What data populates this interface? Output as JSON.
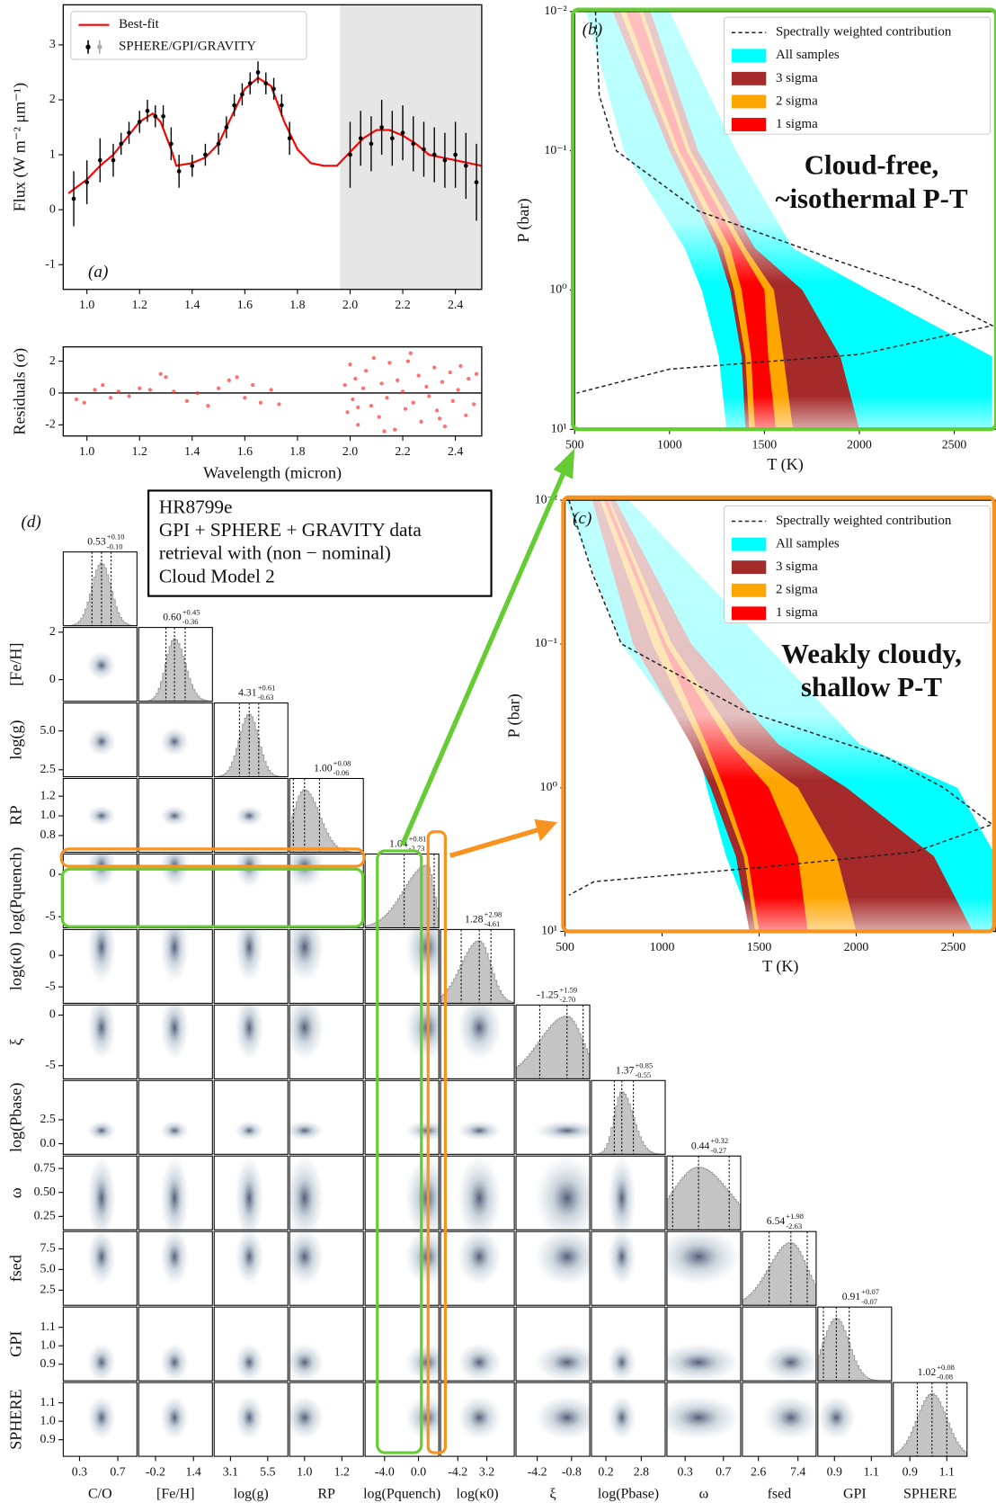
{
  "chart_data": [
    {
      "type": "spectrum",
      "label": "(a)",
      "ylabel": "Flux (W m⁻² μm⁻¹)",
      "xlim": [
        0.91,
        2.5
      ],
      "ylim": [
        -1.45,
        3.73
      ],
      "xticks": [
        {
          "value": 1.0,
          "label": "1.0"
        },
        1.2,
        1.4,
        1.6,
        1.8,
        {
          "value": 2.0,
          "label": "2.0"
        },
        2.2,
        2.4
      ],
      "yticks": [
        -1,
        0,
        1,
        2,
        3
      ],
      "legend": "upper left",
      "series": [
        {
          "name": "Best-fit",
          "color": "#ff0000",
          "x": [
            0.93,
            1.0,
            1.05,
            1.1,
            1.15,
            1.2,
            1.25,
            1.28,
            1.32,
            1.34,
            1.4,
            1.45,
            1.5,
            1.55,
            1.6,
            1.65,
            1.7,
            1.75,
            1.8,
            1.85,
            1.9,
            1.95,
            2.0,
            2.05,
            2.1,
            2.15,
            2.2,
            2.25,
            2.3,
            2.35,
            2.4,
            2.45,
            2.5
          ],
          "values": [
            0.3,
            0.55,
            0.8,
            1.0,
            1.3,
            1.6,
            1.75,
            1.6,
            1.1,
            0.8,
            0.85,
            0.95,
            1.2,
            1.7,
            2.2,
            2.4,
            2.25,
            1.6,
            1.1,
            0.85,
            0.8,
            0.8,
            1.05,
            1.3,
            1.45,
            1.45,
            1.35,
            1.2,
            1.0,
            0.95,
            0.9,
            0.85,
            0.8
          ]
        },
        {
          "name": "SPHERE/GPI/GRAVITY",
          "color": "#000000",
          "x": [
            0.95,
            1.0,
            1.05,
            1.1,
            1.13,
            1.16,
            1.2,
            1.23,
            1.26,
            1.29,
            1.32,
            1.35,
            1.4,
            1.45,
            1.5,
            1.53,
            1.56,
            1.59,
            1.62,
            1.65,
            1.68,
            1.71,
            1.74,
            1.77,
            2.0,
            2.04,
            2.08,
            2.12,
            2.16,
            2.2,
            2.24,
            2.28,
            2.32,
            2.36,
            2.4,
            2.44,
            2.48
          ],
          "values": [
            0.2,
            0.5,
            0.9,
            0.9,
            1.2,
            1.4,
            1.6,
            1.8,
            1.7,
            1.7,
            1.2,
            0.7,
            0.8,
            1.0,
            1.2,
            1.5,
            1.9,
            2.1,
            2.3,
            2.5,
            2.3,
            2.2,
            1.9,
            1.3,
            1.0,
            1.3,
            1.2,
            1.5,
            1.3,
            1.4,
            1.2,
            1.1,
            1.0,
            0.9,
            1.0,
            0.8,
            0.5
          ],
          "errors": [
            0.5,
            0.4,
            0.4,
            0.3,
            0.2,
            0.2,
            0.2,
            0.2,
            0.2,
            0.2,
            0.3,
            0.3,
            0.2,
            0.2,
            0.2,
            0.2,
            0.2,
            0.2,
            0.2,
            0.2,
            0.2,
            0.2,
            0.2,
            0.3,
            0.6,
            0.5,
            0.5,
            0.5,
            0.5,
            0.5,
            0.5,
            0.5,
            0.5,
            0.5,
            0.6,
            0.6,
            0.7
          ]
        }
      ]
    },
    {
      "type": "scatter",
      "xlabel": "Wavelength (micron)",
      "ylabel": "Residuals (σ)",
      "color": "#ff3333",
      "xlim": [
        0.91,
        2.5
      ],
      "ylim": [
        -2.7,
        2.9
      ],
      "xticks": [
        {
          "value": 1.0,
          "label": "1.0"
        },
        1.2,
        1.4,
        1.6,
        1.8,
        {
          "value": 2.0,
          "label": "2.0"
        },
        2.2,
        2.4
      ],
      "yticks": [
        -2,
        0,
        2
      ],
      "x": [
        0.96,
        0.99,
        1.03,
        1.06,
        1.09,
        1.12,
        1.16,
        1.2,
        1.24,
        1.28,
        1.3,
        1.33,
        1.38,
        1.42,
        1.46,
        1.5,
        1.54,
        1.57,
        1.6,
        1.63,
        1.66,
        1.7,
        1.73,
        1.98,
        1.99,
        2.0,
        2.01,
        2.02,
        2.03,
        2.05,
        2.06,
        2.08,
        2.09,
        2.11,
        2.12,
        2.14,
        2.15,
        2.17,
        2.18,
        2.2,
        2.21,
        2.23,
        2.24,
        2.26,
        2.27,
        2.29,
        2.3,
        2.32,
        2.33,
        2.35,
        2.36,
        2.38,
        2.39,
        2.41,
        2.42,
        2.44,
        2.45,
        2.47,
        2.48,
        2.03,
        2.13,
        2.22,
        2.34
      ],
      "values": [
        -0.4,
        -0.6,
        0.2,
        0.5,
        -0.3,
        0.1,
        -0.2,
        0.3,
        0.2,
        1.2,
        1.0,
        0.1,
        -0.5,
        0.0,
        -0.8,
        0.3,
        0.8,
        1.0,
        -0.3,
        0.5,
        -0.6,
        0.2,
        -0.7,
        0.5,
        -1.2,
        1.8,
        -0.4,
        0.9,
        -2.0,
        0.3,
        1.4,
        -0.8,
        2.2,
        -1.5,
        0.6,
        -0.3,
        1.9,
        -2.3,
        0.8,
        0.1,
        -1.0,
        2.5,
        -0.6,
        1.1,
        -1.8,
        0.4,
        -0.2,
        1.6,
        -1.1,
        0.7,
        -2.1,
        1.3,
        -0.5,
        0.2,
        1.7,
        -1.4,
        0.9,
        -0.7,
        1.2,
        -0.9,
        -2.4,
        2.0,
        -1.6
      ]
    },
    {
      "type": "pt-profile",
      "label": "(b)",
      "xlabel": "T (K)",
      "ylabel": "P (bar)",
      "log_y": true,
      "xlim": [
        500,
        2720
      ],
      "ylim": [
        0.01,
        10
      ],
      "xticks": [
        500,
        1000,
        1500,
        2000,
        2500
      ],
      "yticks": [
        {
          "value": 0.01,
          "label": "10⁻²"
        },
        {
          "value": 0.1,
          "label": "10⁻¹"
        },
        {
          "value": 1,
          "label": "10⁰"
        },
        {
          "value": 10,
          "label": "10¹"
        }
      ],
      "legend": "upper right",
      "annotation": [
        "Cloud-free,",
        "~isothermal P-T"
      ],
      "annotation_color": "#66cc33",
      "pressures": [
        0.01,
        0.1,
        0.5,
        1,
        3,
        10
      ],
      "series": [
        {
          "name": "All samples",
          "color": "#00ffff",
          "lower": [
            560,
            760,
            1080,
            1170,
            1260,
            1300
          ],
          "upper": [
            1000,
            1350,
            1650,
            2050,
            2700,
            2700
          ]
        },
        {
          "name": "3 sigma",
          "color": "#a52a2a",
          "lower": [
            700,
            1000,
            1250,
            1320,
            1380,
            1400
          ],
          "upper": [
            900,
            1150,
            1450,
            1700,
            1900,
            2000
          ]
        },
        {
          "name": "2 sigma",
          "color": "#ffa500",
          "lower": [
            740,
            1030,
            1280,
            1340,
            1400,
            1420
          ],
          "upper": [
            860,
            1110,
            1400,
            1550,
            1600,
            1650
          ]
        },
        {
          "name": "1 sigma",
          "color": "#ff0000",
          "lower": [
            770,
            1050,
            1320,
            1380,
            1430,
            1450
          ],
          "upper": [
            840,
            1090,
            1370,
            1500,
            1520,
            1560
          ]
        }
      ],
      "contribution": {
        "name": "Spectrally weighted contribution",
        "p": [
          0.01,
          0.04,
          0.1,
          0.27,
          0.6,
          0.96,
          1.8,
          2.9,
          3.7,
          5.5
        ],
        "t": [
          610,
          630,
          720,
          1150,
          1860,
          2300,
          2700,
          2000,
          1000,
          510
        ]
      }
    },
    {
      "type": "pt-profile",
      "label": "(c)",
      "xlabel": "T (K)",
      "ylabel": "P (bar)",
      "log_y": true,
      "xlim": [
        500,
        2720
      ],
      "ylim": [
        0.01,
        10
      ],
      "xticks": [
        500,
        1000,
        1500,
        2000,
        2500
      ],
      "yticks": [
        {
          "value": 0.01,
          "label": "10⁻²"
        },
        {
          "value": 0.1,
          "label": "10⁻¹"
        },
        {
          "value": 1,
          "label": "10⁰"
        },
        {
          "value": 10,
          "label": "10¹"
        }
      ],
      "legend": "upper right",
      "annotation": [
        "Weakly cloudy,",
        "shallow P-T"
      ],
      "annotation_color": "#f7931e",
      "pressures": [
        0.01,
        0.1,
        0.5,
        1,
        3,
        10
      ],
      "series": [
        {
          "name": "All samples",
          "color": "#00ffff",
          "lower": [
            500,
            790,
            1180,
            1230,
            1330,
            1480
          ],
          "upper": [
            830,
            1530,
            2020,
            2520,
            2720,
            2720
          ]
        },
        {
          "name": "3 sigma",
          "color": "#a52a2a",
          "lower": [
            640,
            850,
            1150,
            1250,
            1380,
            1450
          ],
          "upper": [
            760,
            1150,
            1600,
            1950,
            2400,
            2600
          ]
        },
        {
          "name": "2 sigma",
          "color": "#ffa500",
          "lower": [
            680,
            950,
            1200,
            1290,
            1420,
            1480
          ],
          "upper": [
            730,
            1050,
            1400,
            1700,
            1900,
            2000
          ]
        },
        {
          "name": "1 sigma",
          "color": "#ff0000",
          "lower": [
            700,
            1000,
            1230,
            1320,
            1440,
            1500
          ],
          "upper": [
            720,
            1020,
            1350,
            1550,
            1700,
            1750
          ]
        }
      ],
      "contribution": {
        "name": "Spectrally weighted contribution",
        "p": [
          0.01,
          0.032,
          0.1,
          0.29,
          0.61,
          1.0,
          1.8,
          2.8,
          3.6,
          4.5,
          5.6
        ],
        "t": [
          520,
          640,
          790,
          1420,
          2150,
          2450,
          2700,
          2300,
          1500,
          650,
          520
        ]
      }
    },
    {
      "type": "corner",
      "label": "(d)",
      "annotation": [
        "HR8799e",
        "GPI + SPHERE + GRAVITY data",
        "retrieval with (non − nominal)",
        "Cloud Model 2"
      ],
      "parameters": [
        {
          "label": "C/O",
          "lim": [
            0.13,
            0.9
          ],
          "xticks": [
            0.3,
            0.7
          ],
          "median": 0.53,
          "err_plus": 0.1,
          "err_minus": -0.1,
          "value_labels": [
            "0.53",
            "+0.10",
            "-0.10"
          ]
        },
        {
          "label": "[Fe/H]",
          "lim": [
            -0.91,
            2.2
          ],
          "xticks": [
            -0.2,
            1.4
          ],
          "yticks": [
            0,
            2
          ],
          "median": 0.6,
          "err_plus": 0.45,
          "err_minus": -0.36,
          "value_labels": [
            "0.60",
            "+0.45",
            "-0.36"
          ]
        },
        {
          "label": "log(g)",
          "lim": [
            2.05,
            6.8
          ],
          "xticks": [
            3.1,
            5.5
          ],
          "yticks": [
            2.5,
            {
              "value": 5,
              "label": "5.0"
            }
          ],
          "median": 4.31,
          "err_plus": 0.61,
          "err_minus": -0.63,
          "value_labels": [
            "4.31",
            "+0.61",
            "-0.63"
          ]
        },
        {
          "label": "RP",
          "lim": [
            0.92,
            1.315
          ],
          "ylim": [
            0.63,
            1.38
          ],
          "xticks": [
            {
              "value": 1,
              "label": "1.0"
            },
            1.2
          ],
          "yticks": [
            0.8,
            {
              "value": 1,
              "label": "1.0"
            },
            1.2
          ],
          "median": 1.0,
          "err_plus": 0.08,
          "err_minus": -0.06,
          "value_labels": [
            "1.00",
            "+0.08",
            "-0.06"
          ]
        },
        {
          "label": "log(Pquench)",
          "lim": [
            -6.3,
            2.4
          ],
          "xticks": [
            {
              "value": -4,
              "label": "-4.0"
            },
            {
              "value": 0,
              "label": "0.0"
            }
          ],
          "yticks": [
            -5,
            0
          ],
          "median": 1.04,
          "err_plus": 0.81,
          "err_minus": -2.73,
          "value_labels": [
            "1.04",
            "+0.81",
            "-2.73"
          ]
        },
        {
          "label": "log(κ0)",
          "lim": [
            -8.6,
            10.2
          ],
          "ylim": [
            -7.6,
            4.1
          ],
          "xticks": [
            -4.2,
            3.2
          ],
          "yticks": [
            -5,
            0
          ],
          "median": 1.28,
          "err_plus": 2.98,
          "err_minus": -4.61,
          "value_labels": [
            "1.28",
            "+2.98",
            "-4.61"
          ]
        },
        {
          "label": "ξ",
          "lim": [
            -6.3,
            1.0
          ],
          "xticks": [
            -4.2,
            -0.8
          ],
          "yticks": [
            -5,
            0
          ],
          "median": -1.25,
          "err_plus": 1.59,
          "err_minus": -2.7,
          "value_labels": [
            "-1.25",
            "+1.59",
            "-2.70"
          ]
        },
        {
          "label": "log(Pbase)",
          "lim": [
            -0.86,
            4.56
          ],
          "ylim": [
            -1.1,
            6.6
          ],
          "xticks": [
            0.2,
            2.8
          ],
          "yticks": [
            {
              "value": 0,
              "label": "0.0"
            },
            2.5
          ],
          "median": 1.37,
          "err_plus": 0.85,
          "err_minus": -0.55,
          "value_labels": [
            "1.37",
            "+0.85",
            "-0.55"
          ]
        },
        {
          "label": "ω",
          "lim": [
            0.11,
            0.88
          ],
          "xticks": [
            0.3,
            0.7
          ],
          "yticks": [
            0.25,
            {
              "value": 0.5,
              "label": "0.50"
            },
            0.75
          ],
          "median": 0.44,
          "err_plus": 0.32,
          "err_minus": -0.27,
          "value_labels": [
            "0.44",
            "+0.32",
            "-0.27"
          ]
        },
        {
          "label": "fsed",
          "lim": [
            0.66,
            9.6
          ],
          "xticks": [
            2.6,
            7.4
          ],
          "yticks": [
            2.5,
            {
              "value": 5,
              "label": "5.0"
            },
            7.5
          ],
          "median": 6.54,
          "err_plus": 1.98,
          "err_minus": -2.63,
          "value_labels": [
            "6.54",
            "+1.98",
            "-2.63"
          ]
        },
        {
          "label": "GPI",
          "lim": [
            0.81,
            1.21
          ],
          "xticks": [
            0.9,
            1.1
          ],
          "yticks": [
            0.9,
            {
              "value": 1,
              "label": "1.0"
            },
            1.1
          ],
          "median": 0.91,
          "err_plus": 0.07,
          "err_minus": -0.07,
          "value_labels": [
            "0.91",
            "+0.07",
            "-0.07"
          ]
        },
        {
          "label": "SPHERE",
          "lim": [
            0.81,
            1.21
          ],
          "xticks": [
            0.9,
            1.1
          ],
          "yticks": [
            0.9,
            {
              "value": 1,
              "label": "1.0"
            },
            1.1
          ],
          "median": 1.02,
          "err_plus": 0.08,
          "err_minus": -0.08,
          "value_labels": [
            "1.02",
            "+0.08",
            "-0.08"
          ]
        }
      ]
    }
  ]
}
